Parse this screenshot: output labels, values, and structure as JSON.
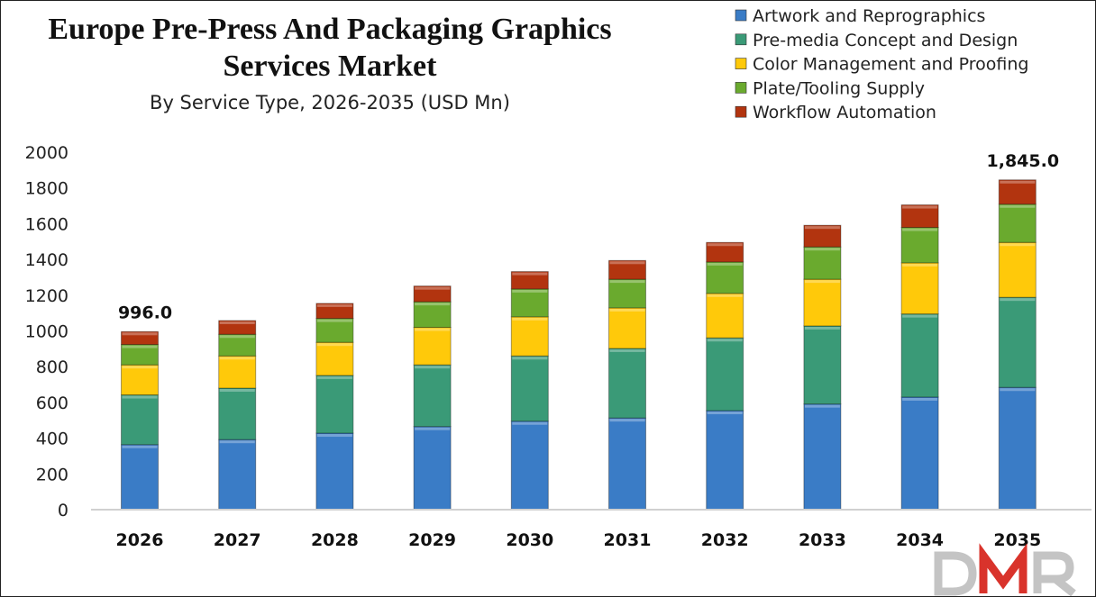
{
  "chart_data": {
    "type": "bar",
    "stacked": true,
    "title": "Europe Pre-Press And Packaging Graphics Services Market",
    "title_lines": [
      "Europe Pre-Press And Packaging Graphics",
      "Services Market"
    ],
    "subtitle": "By Service Type, 2026-2035 (USD Mn)",
    "xlabel": "",
    "ylabel": "",
    "ylim": [
      0,
      2000
    ],
    "yticks": [
      0,
      200,
      400,
      600,
      800,
      1000,
      1200,
      1400,
      1600,
      1800,
      2000
    ],
    "grid": false,
    "legend_position": "top-right",
    "categories": [
      "2026",
      "2027",
      "2028",
      "2029",
      "2030",
      "2031",
      "2032",
      "2033",
      "2034",
      "2035"
    ],
    "series": [
      {
        "name": "Artwork and Reprographics",
        "color": "#3a7cc6",
        "values": [
          364,
          392,
          428,
          465,
          495,
          513,
          554,
          591,
          630,
          684
        ]
      },
      {
        "name": "Pre-media Concept and Design",
        "color": "#3a9a77",
        "values": [
          278,
          288,
          323,
          345,
          365,
          389,
          407,
          437,
          465,
          504
        ]
      },
      {
        "name": "Color Management and Proofing",
        "color": "#ffc90a",
        "values": [
          168,
          180,
          185,
          210,
          219,
          227,
          249,
          261,
          286,
          307
        ]
      },
      {
        "name": "Plate/Tooling Supply",
        "color": "#6aaa2e",
        "values": [
          114,
          121,
          134,
          143,
          156,
          160,
          176,
          181,
          198,
          214
        ]
      },
      {
        "name": "Workflow Automation",
        "color": "#b2340f",
        "values": [
          72,
          77,
          84,
          88,
          97,
          105,
          109,
          121,
          126,
          136
        ]
      }
    ],
    "annotations": [
      {
        "category": "2026",
        "text": "996.0"
      },
      {
        "category": "2035",
        "text": "1,845.0"
      }
    ]
  },
  "logo": {
    "text": "DMR"
  }
}
